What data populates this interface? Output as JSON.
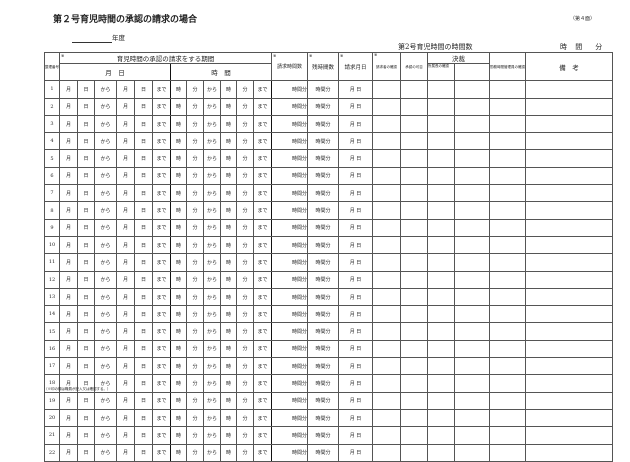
{
  "title": "第２号育児時間の承認の請求の場合",
  "sheet_label": "（第４面）",
  "year_label": "年度",
  "total_label": "第2号育児時間の時間数",
  "total_unit": "時 間　分",
  "headers": {
    "row_no": "整理番号",
    "period": "育児時間の承認の請求をする期間",
    "date": "月　日",
    "time": "時　間",
    "requested_hours": "請求時間数",
    "remaining_hours": "残時間数",
    "request_date": "請求月日",
    "requester_confirm": "請求者の確認",
    "approval": "承認の可否",
    "decision": "決裁",
    "manager_confirm": "所属長の確認",
    "timekeeper_confirm": "勤務時間管理員の確認",
    "remarks": "備　考"
  },
  "row_template": {
    "month": "月",
    "day": "日",
    "from": "から",
    "until": "まで",
    "hour": "時",
    "minute": "分",
    "hours_min": "時間分",
    "req_date": "月 日"
  },
  "rows": [
    "1",
    "2",
    "3",
    "4",
    "5",
    "6",
    "7",
    "8",
    "9",
    "10",
    "11",
    "12",
    "13",
    "14",
    "15",
    "16",
    "17",
    "18",
    "19",
    "20",
    "21",
    "22"
  ],
  "footnote": "（※印の欄は職員が記入又は確認する。）"
}
